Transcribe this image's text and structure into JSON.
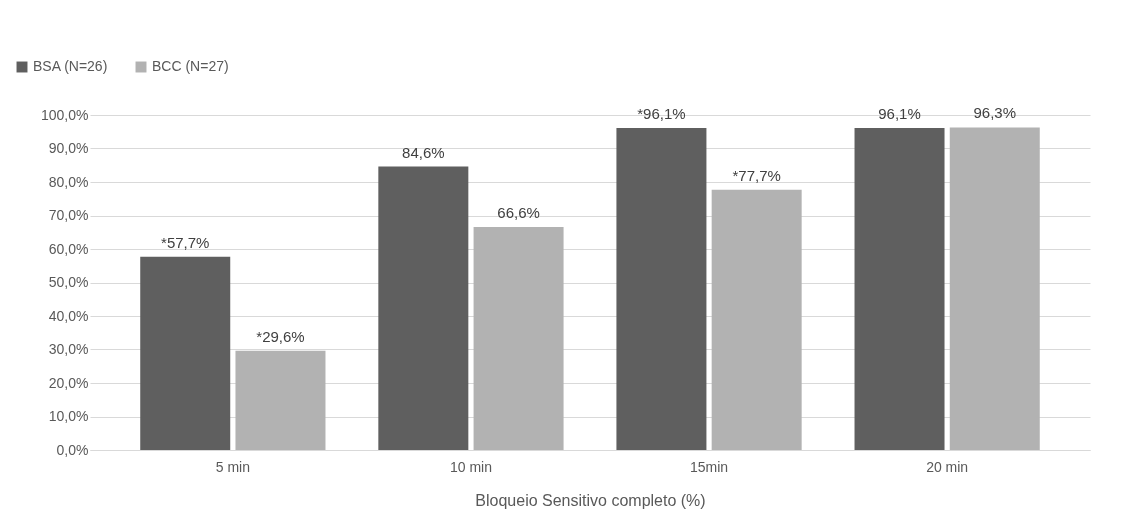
{
  "chart_data": {
    "type": "bar",
    "xlabel": "Bloqueio Sensitivo completo (%)",
    "categories": [
      "5 min",
      "10 min",
      "15min",
      "20 min"
    ],
    "series": [
      {
        "name": "BSA (N=26)",
        "color": "#5f5f5f",
        "values": [
          57.7,
          84.6,
          96.1,
          96.1
        ],
        "value_labels": [
          "*57,7%",
          "84,6%",
          "*96,1%",
          "96,1%"
        ]
      },
      {
        "name": "BCC (N=27)",
        "color": "#b2b2b2",
        "values": [
          29.6,
          66.6,
          77.7,
          96.3
        ],
        "value_labels": [
          "*29,6%",
          "66,6%",
          "*77,7%",
          "96,3%"
        ]
      }
    ],
    "ylim": [
      0,
      100
    ],
    "yticks": [
      {
        "value": 0,
        "label": "0,0%"
      },
      {
        "value": 10,
        "label": "10,0%"
      },
      {
        "value": 20,
        "label": "20,0%"
      },
      {
        "value": 30,
        "label": "30,0%"
      },
      {
        "value": 40,
        "label": "40,0%"
      },
      {
        "value": 50,
        "label": "50,0%"
      },
      {
        "value": 60,
        "label": "60,0%"
      },
      {
        "value": 70,
        "label": "70,0%"
      },
      {
        "value": 80,
        "label": "80,0%"
      },
      {
        "value": 90,
        "label": "90,0%"
      },
      {
        "value": 100,
        "label": "100,0%"
      }
    ],
    "grid": "y",
    "legend": "top left"
  }
}
